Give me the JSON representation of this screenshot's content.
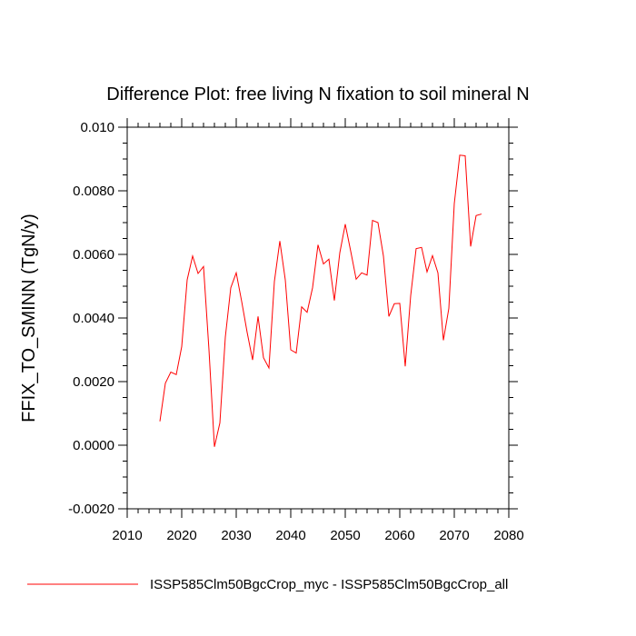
{
  "chart_data": {
    "type": "line",
    "title": "Difference Plot: free living N fixation to soil mineral N",
    "xlabel": "",
    "ylabel": "FFIX_TO_SMINN  (TgN/y)",
    "xlim": [
      2010,
      2080
    ],
    "ylim": [
      -0.002,
      0.01
    ],
    "x_ticks": [
      2010,
      2020,
      2030,
      2040,
      2050,
      2060,
      2070,
      2080
    ],
    "x_tick_labels": [
      "2010",
      "2020",
      "2030",
      "2040",
      "2050",
      "2060",
      "2070",
      "2080"
    ],
    "y_ticks": [
      -0.002,
      0.0,
      0.002,
      0.004,
      0.006,
      0.008,
      0.01
    ],
    "y_tick_labels": [
      "-0.0020",
      "0.0000",
      "0.0020",
      "0.0040",
      "0.0060",
      "0.0080",
      "0.010"
    ],
    "grid": false,
    "legend_position": "bottom",
    "series": [
      {
        "name": "ISSP585Clm50BgcCrop_myc - ISSP585Clm50BgcCrop_all",
        "color": "#ff0000",
        "x": [
          2016,
          2017,
          2018,
          2019,
          2020,
          2021,
          2022,
          2023,
          2024,
          2025,
          2026,
          2027,
          2028,
          2029,
          2030,
          2031,
          2032,
          2033,
          2034,
          2035,
          2036,
          2037,
          2038,
          2039,
          2040,
          2041,
          2042,
          2043,
          2044,
          2045,
          2046,
          2047,
          2048,
          2049,
          2050,
          2051,
          2052,
          2053,
          2054,
          2055,
          2056,
          2057,
          2058,
          2059,
          2060,
          2061,
          2062,
          2063,
          2064,
          2065,
          2066,
          2067,
          2068,
          2069,
          2070,
          2071,
          2072,
          2073,
          2074,
          2075
        ],
        "y": [
          0.00075,
          0.00195,
          0.0023,
          0.00222,
          0.0031,
          0.0052,
          0.00595,
          0.0054,
          0.00562,
          0.003,
          -5e-05,
          0.0007,
          0.0034,
          0.00495,
          0.00542,
          0.00452,
          0.00355,
          0.00268,
          0.00405,
          0.00275,
          0.00243,
          0.00515,
          0.00642,
          0.0052,
          0.003,
          0.0029,
          0.00435,
          0.00418,
          0.00495,
          0.0063,
          0.0057,
          0.00585,
          0.00455,
          0.00605,
          0.00695,
          0.0061,
          0.00522,
          0.00542,
          0.00535,
          0.00707,
          0.007,
          0.00595,
          0.00405,
          0.00445,
          0.00446,
          0.00248,
          0.0047,
          0.00618,
          0.00622,
          0.00545,
          0.00596,
          0.00542,
          0.0033,
          0.0043,
          0.0076,
          0.00912,
          0.0091,
          0.00625,
          0.00722,
          0.00727
        ]
      }
    ]
  }
}
